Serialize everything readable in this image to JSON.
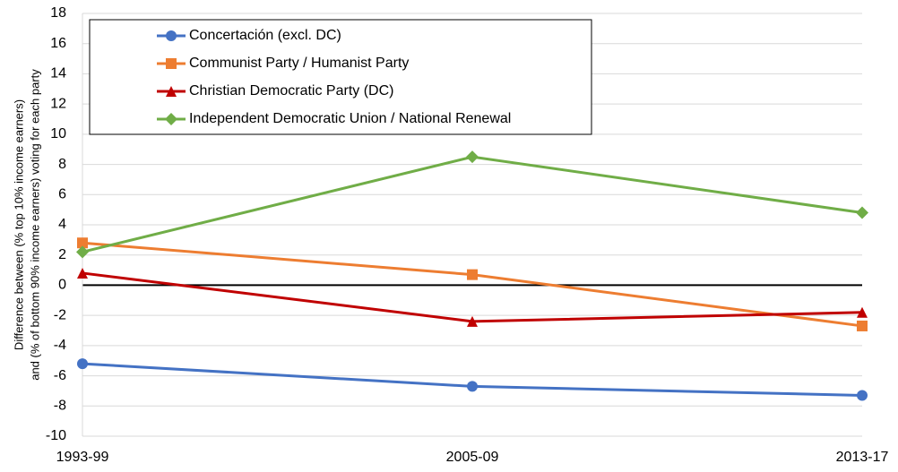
{
  "chart_data": {
    "type": "line",
    "ylabel": [
      "Difference between (% top 10% income earners)",
      "and (% of bottom 90% income earners) voting for each party"
    ],
    "categories": [
      "1993-99",
      "2005-09",
      "2013-17"
    ],
    "series": [
      {
        "name": "Concertación (excl. DC)",
        "color": "#4472c4",
        "marker": "circle",
        "values": [
          -5.2,
          -6.7,
          -7.3
        ]
      },
      {
        "name": "Communist Party / Humanist Party",
        "color": "#ed7d31",
        "marker": "square",
        "values": [
          2.8,
          0.7,
          -2.7
        ]
      },
      {
        "name": "Christian Democratic Party (DC)",
        "color": "#c00000",
        "marker": "triangle",
        "values": [
          0.8,
          -2.4,
          -1.8
        ]
      },
      {
        "name": "Independent Democratic Union / National Renewal",
        "color": "#70ad47",
        "marker": "diamond",
        "values": [
          2.2,
          8.5,
          4.8
        ]
      }
    ],
    "ylim": [
      -10,
      18
    ],
    "yticks": [
      -10,
      -8,
      -6,
      -4,
      -2,
      0,
      2,
      4,
      6,
      8,
      10,
      12,
      14,
      16,
      18
    ],
    "grid": true
  }
}
